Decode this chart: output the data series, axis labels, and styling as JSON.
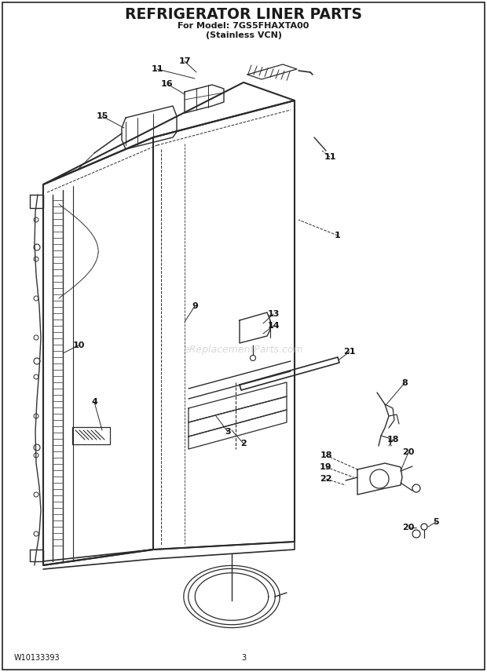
{
  "title": "REFRIGERATOR LINER PARTS",
  "subtitle1": "For Model: 7GS5FHAXTA00",
  "subtitle2": "(Stainless VCN)",
  "footer_left": "W10133393",
  "footer_center": "3",
  "bg_color": "#ffffff",
  "title_color": "#1a1a1a",
  "lc": "#2a2a2a",
  "watermark": "eReplacementParts.com",
  "fig_w": 6.2,
  "fig_h": 8.56,
  "dpi": 100
}
